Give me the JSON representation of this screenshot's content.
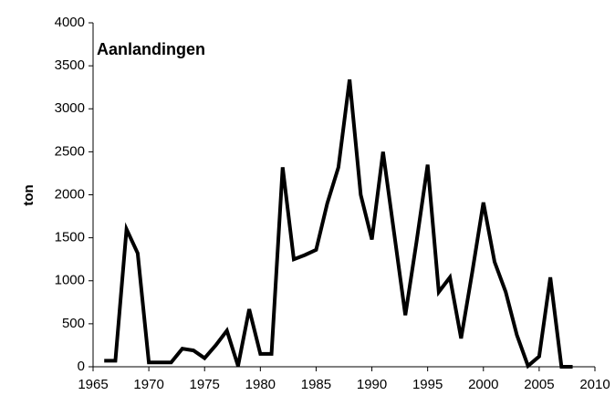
{
  "chart_data": {
    "type": "line",
    "title": "Aanlandingen",
    "y_label": "ton",
    "x": [
      1966,
      1967,
      1968,
      1969,
      1970,
      1971,
      1972,
      1973,
      1974,
      1975,
      1976,
      1977,
      1978,
      1979,
      1980,
      1981,
      1982,
      1983,
      1984,
      1985,
      1986,
      1987,
      1988,
      1989,
      1990,
      1991,
      1992,
      1993,
      1994,
      1995,
      1996,
      1997,
      1998,
      1999,
      2000,
      2001,
      2002,
      2003,
      2004,
      2005,
      2006,
      2007,
      2008
    ],
    "series": [
      {
        "color": "#000000",
        "values": [
          70,
          70,
          1600,
          1320,
          50,
          50,
          50,
          210,
          190,
          100,
          250,
          420,
          10,
          670,
          150,
          150,
          2320,
          1250,
          1300,
          1360,
          1900,
          2320,
          3340,
          2000,
          1480,
          2500,
          1550,
          600,
          1450,
          2350,
          870,
          1040,
          330,
          1100,
          1910,
          1220,
          870,
          370,
          10,
          120,
          1040,
          0,
          0
        ]
      }
    ],
    "xlim": [
      1965,
      2010
    ],
    "xticks": [
      1965,
      1970,
      1975,
      1980,
      1985,
      1990,
      1995,
      2000,
      2005,
      2010
    ],
    "ylim": [
      0,
      4000
    ],
    "yticks": [
      0,
      500,
      1000,
      1500,
      2000,
      2500,
      3000,
      3500,
      4000
    ],
    "grid": false
  }
}
